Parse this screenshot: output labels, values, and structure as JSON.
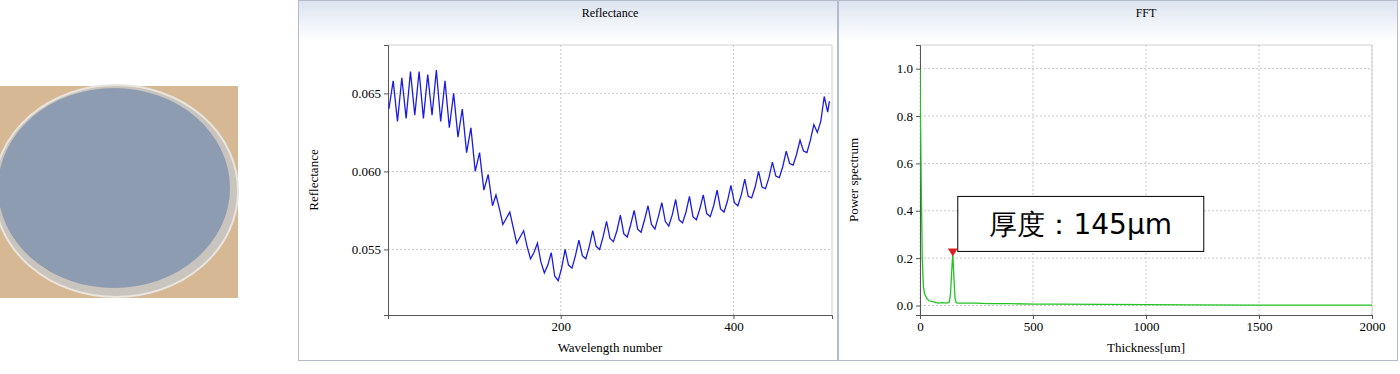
{
  "chart_data": [
    {
      "type": "line",
      "title": "Reflectance",
      "x_label": "Wavelength number",
      "y_label": "Reflectance",
      "x": [
        1,
        6,
        11,
        16,
        21,
        26,
        31,
        36,
        41,
        46,
        51,
        56,
        61,
        66,
        71,
        76,
        81,
        86,
        91,
        96,
        101,
        106,
        111,
        116,
        121,
        125,
        129,
        133,
        137,
        141,
        145,
        149,
        153,
        157,
        161,
        165,
        169,
        173,
        177,
        181,
        185,
        189,
        193,
        197,
        201,
        205,
        209,
        213,
        217,
        221,
        225,
        229,
        233,
        237,
        241,
        245,
        249,
        253,
        257,
        261,
        265,
        269,
        273,
        277,
        281,
        285,
        289,
        293,
        297,
        301,
        305,
        309,
        313,
        317,
        321,
        325,
        329,
        333,
        337,
        341,
        345,
        349,
        353,
        357,
        361,
        365,
        369,
        373,
        377,
        381,
        385,
        389,
        393,
        397,
        401,
        405,
        409,
        413,
        417,
        421,
        425,
        429,
        433,
        437,
        441,
        445,
        449,
        453,
        457,
        461,
        465,
        469,
        473,
        477,
        481,
        485,
        489,
        493,
        497,
        501,
        505,
        509,
        511
      ],
      "values": [
        0.064,
        0.0658,
        0.0632,
        0.066,
        0.0634,
        0.0664,
        0.0636,
        0.0664,
        0.0634,
        0.0662,
        0.0636,
        0.0665,
        0.0632,
        0.0658,
        0.0628,
        0.065,
        0.0622,
        0.064,
        0.0612,
        0.0628,
        0.06,
        0.0612,
        0.0588,
        0.0598,
        0.0578,
        0.0585,
        0.0576,
        0.0566,
        0.057,
        0.0574,
        0.0564,
        0.0554,
        0.0558,
        0.0562,
        0.0552,
        0.0544,
        0.0548,
        0.0554,
        0.0542,
        0.0535,
        0.054,
        0.0548,
        0.0533,
        0.053,
        0.0538,
        0.055,
        0.054,
        0.0538,
        0.0546,
        0.0556,
        0.0546,
        0.0544,
        0.0552,
        0.0562,
        0.0552,
        0.055,
        0.0558,
        0.0568,
        0.0557,
        0.0555,
        0.0562,
        0.0572,
        0.056,
        0.0558,
        0.0566,
        0.0575,
        0.0563,
        0.0561,
        0.0569,
        0.0578,
        0.0566,
        0.0563,
        0.0571,
        0.058,
        0.0568,
        0.0565,
        0.0572,
        0.0582,
        0.0569,
        0.0567,
        0.0574,
        0.0584,
        0.0571,
        0.0569,
        0.0576,
        0.0585,
        0.0573,
        0.0571,
        0.0578,
        0.0588,
        0.0576,
        0.0574,
        0.0581,
        0.0591,
        0.058,
        0.0578,
        0.0585,
        0.0595,
        0.0584,
        0.0583,
        0.059,
        0.06,
        0.059,
        0.0589,
        0.0596,
        0.0606,
        0.0597,
        0.0596,
        0.0603,
        0.0613,
        0.0605,
        0.0604,
        0.0611,
        0.062,
        0.0613,
        0.0612,
        0.062,
        0.063,
        0.0625,
        0.0632,
        0.0648,
        0.0638,
        0.0645
      ],
      "color": "#1c1ce0",
      "xlim": [
        0,
        514
      ],
      "ylim": [
        0.0508,
        0.0681
      ],
      "xticks": [
        200,
        400
      ],
      "yticks": [
        0.055,
        {
          "value": 0.06,
          "label": "0.060"
        },
        0.065
      ],
      "grid": true
    },
    {
      "type": "line",
      "title": "FFT",
      "x_label": "Thickness[um]",
      "y_label": "Power spectrum",
      "x": [
        0,
        5,
        10,
        15,
        20,
        30,
        40,
        60,
        80,
        100,
        120,
        130,
        135,
        140,
        145,
        150,
        155,
        160,
        170,
        200,
        250,
        300,
        400,
        500,
        600,
        800,
        1000,
        1200,
        1500,
        1800,
        2000
      ],
      "values": [
        1.0,
        0.55,
        0.2,
        0.08,
        0.05,
        0.03,
        0.02,
        0.015,
        0.01,
        0.012,
        0.01,
        0.015,
        0.05,
        0.14,
        0.22,
        0.12,
        0.03,
        0.012,
        0.01,
        0.01,
        0.01,
        0.008,
        0.008,
        0.006,
        0.006,
        0.005,
        0.004,
        0.003,
        0.002,
        0.002,
        0.002
      ],
      "color": "#22c322",
      "xlim": [
        0,
        2000
      ],
      "ylim": [
        -0.04,
        1.1
      ],
      "xticks": [
        0,
        500,
        1000,
        1500,
        2000
      ],
      "yticks": [
        {
          "value": 0,
          "label": "0.0"
        },
        {
          "value": 0.2,
          "label": "0.2"
        },
        {
          "value": 0.4,
          "label": "0.4"
        },
        {
          "value": 0.6,
          "label": "0.6"
        },
        {
          "value": 0.8,
          "label": "0.8"
        },
        {
          "value": 1,
          "label": "1.0"
        }
      ],
      "grid": true,
      "annotations": [
        {
          "text": "厚度：145μm",
          "x": 145,
          "y": 0.22
        }
      ]
    }
  ]
}
